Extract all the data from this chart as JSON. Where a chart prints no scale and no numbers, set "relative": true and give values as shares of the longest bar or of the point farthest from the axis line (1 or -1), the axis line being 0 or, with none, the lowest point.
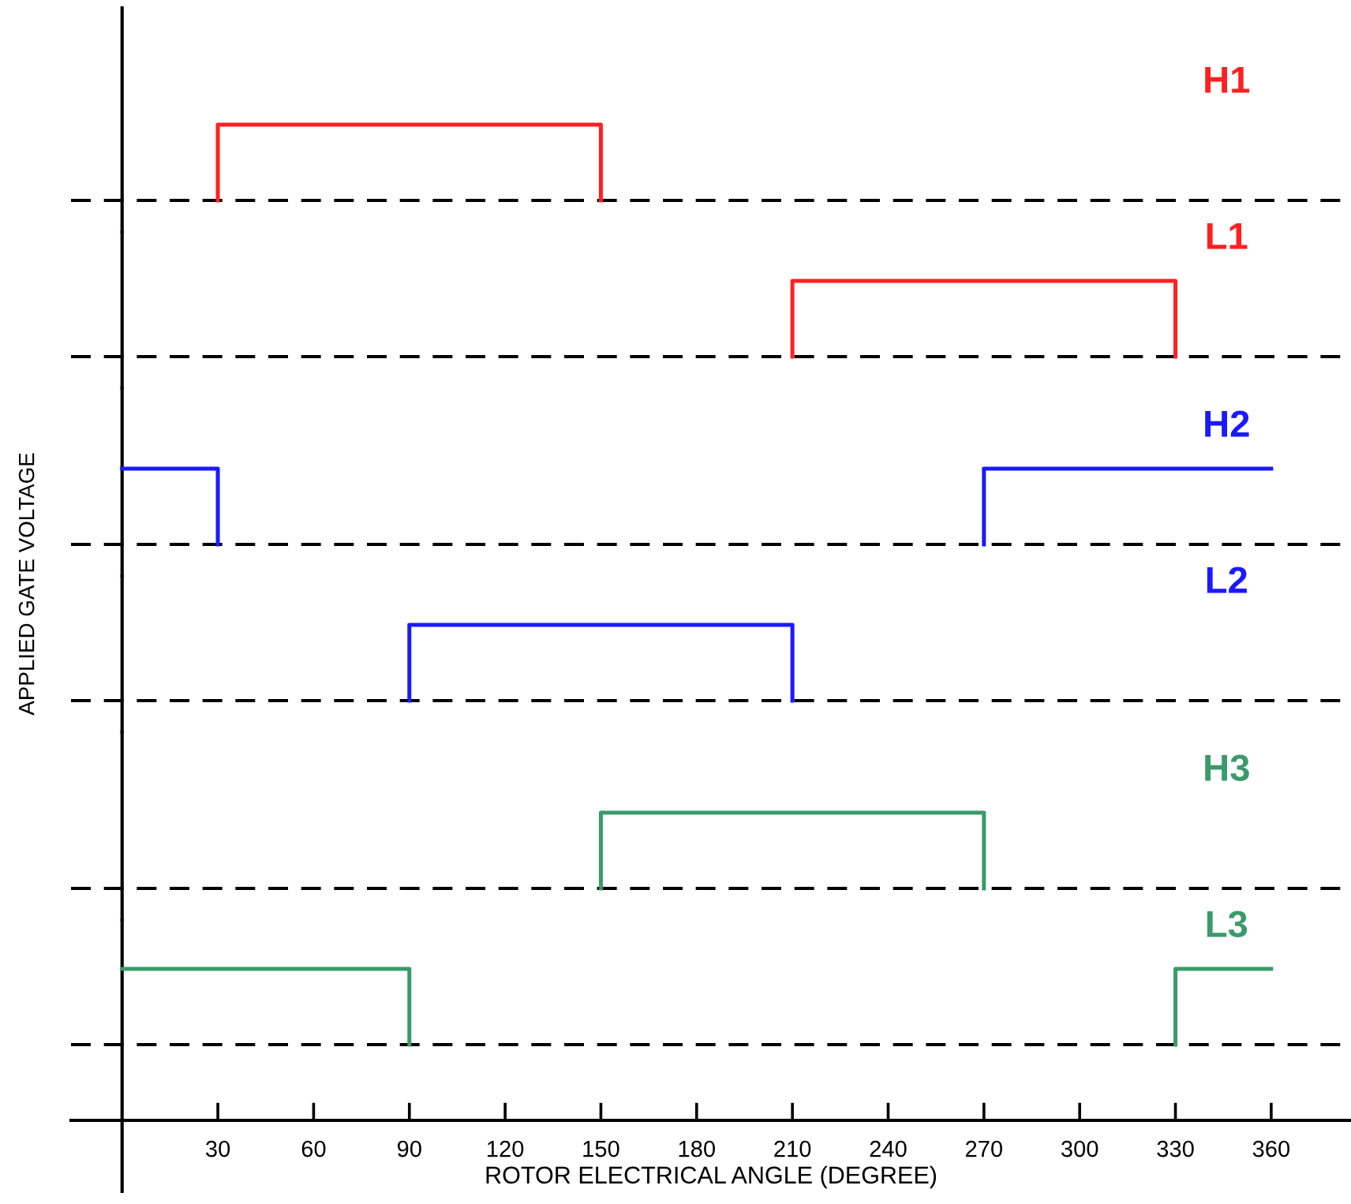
{
  "chart_data": [
    {
      "type": "line",
      "relative": true,
      "xlim": [
        -16,
        385
      ],
      "tick_labels": false,
      "line_style": "solid",
      "marker": "none",
      "series": [
        {
          "name": "H1",
          "color": "#ff2020",
          "x": [
            30,
            30,
            150,
            150
          ],
          "values": [
            0,
            1,
            1,
            0
          ]
        }
      ],
      "ref_lines": [
        {
          "axis": "y",
          "value": 0,
          "color": "#000000",
          "line_style": "dashed"
        }
      ]
    },
    {
      "type": "line",
      "relative": true,
      "xlim": [
        -16,
        385
      ],
      "tick_labels": false,
      "line_style": "solid",
      "marker": "none",
      "series": [
        {
          "name": "L1",
          "color": "#ff2020",
          "x": [
            210,
            210,
            330,
            330
          ],
          "values": [
            0,
            1,
            1,
            0
          ]
        }
      ],
      "ref_lines": [
        {
          "axis": "y",
          "value": 0,
          "color": "#000000",
          "line_style": "dashed"
        }
      ]
    },
    {
      "type": "line",
      "relative": true,
      "xlim": [
        -16,
        385
      ],
      "tick_labels": false,
      "line_style": "solid",
      "marker": "none",
      "ylabel": "APPLIED GATE VOLTAGE",
      "series": [
        {
          "name": "H2",
          "color": "#1a1aff",
          "x": [
            0,
            30,
            30
          ],
          "values": [
            1,
            1,
            0
          ]
        },
        {
          "color": "#1a1aff",
          "x": [
            270,
            270,
            360
          ],
          "values": [
            0,
            1,
            1
          ]
        }
      ],
      "ref_lines": [
        {
          "axis": "y",
          "value": 0,
          "color": "#000000",
          "line_style": "dashed"
        }
      ]
    },
    {
      "type": "line",
      "relative": true,
      "xlim": [
        -16,
        385
      ],
      "tick_labels": false,
      "line_style": "solid",
      "marker": "none",
      "series": [
        {
          "name": "L2",
          "color": "#1a1aff",
          "x": [
            90,
            90,
            210,
            210
          ],
          "values": [
            0,
            1,
            1,
            0
          ]
        }
      ],
      "ref_lines": [
        {
          "axis": "y",
          "value": 0,
          "color": "#000000",
          "line_style": "dashed"
        }
      ]
    },
    {
      "type": "line",
      "relative": true,
      "xlim": [
        -16,
        385
      ],
      "tick_labels": false,
      "line_style": "solid",
      "marker": "none",
      "series": [
        {
          "name": "H3",
          "color": "#3a9a6a",
          "x": [
            150,
            150,
            270,
            270
          ],
          "values": [
            0,
            1,
            1,
            0
          ]
        }
      ],
      "ref_lines": [
        {
          "axis": "y",
          "value": 0,
          "color": "#000000",
          "line_style": "dashed"
        }
      ]
    },
    {
      "type": "line",
      "relative": true,
      "xlim": [
        -16,
        385
      ],
      "tick_labels": "x",
      "line_style": "solid",
      "marker": "none",
      "xlabel": "ROTOR ELECTRICAL ANGLE (DEGREE)",
      "xticks": [
        30,
        60,
        90,
        120,
        150,
        180,
        210,
        240,
        270,
        300,
        330,
        360
      ],
      "series": [
        {
          "name": "L3",
          "color": "#3a9a6a",
          "x": [
            0,
            90,
            90
          ],
          "values": [
            1,
            1,
            0
          ]
        },
        {
          "color": "#3a9a6a",
          "x": [
            330,
            330,
            360
          ],
          "values": [
            0,
            1,
            1
          ]
        }
      ],
      "ref_lines": [
        {
          "axis": "y",
          "value": 0,
          "color": "#000000",
          "line_style": "dashed"
        }
      ]
    }
  ]
}
